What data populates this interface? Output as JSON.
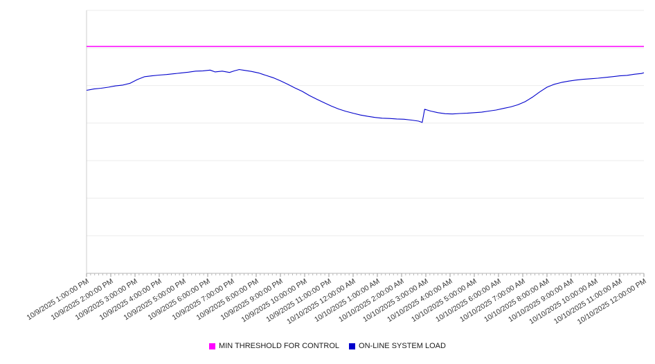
{
  "chart_data": {
    "type": "line",
    "title": "",
    "xlabel": "",
    "ylabel": "",
    "legend_position": "bottom",
    "x_labels": [
      "10/9/2025 1:00:00 PM",
      "10/9/2025 2:00:00 PM",
      "10/9/2025 3:00:00 PM",
      "10/9/2025 4:00:00 PM",
      "10/9/2025 5:00:00 PM",
      "10/9/2025 6:00:00 PM",
      "10/9/2025 7:00:00 PM",
      "10/9/2025 8:00:00 PM",
      "10/9/2025 9:00:00 PM",
      "10/9/2025 10:00:00 PM",
      "10/9/2025 11:00:00 PM",
      "10/10/2025 12:00:00 AM",
      "10/10/2025 1:00:00 AM",
      "10/10/2025 2:00:00 AM",
      "10/10/2025 3:00:00 AM",
      "10/10/2025 4:00:00 AM",
      "10/10/2025 5:00:00 AM",
      "10/10/2025 6:00:00 AM",
      "10/10/2025 7:00:00 AM",
      "10/10/2025 8:00:00 AM",
      "10/10/2025 9:00:00 AM",
      "10/10/2025 10:00:00 AM",
      "10/10/2025 11:00:00 AM",
      "10/10/2025 12:00:00 PM"
    ],
    "y_axis": {
      "min": 0,
      "max": 100,
      "gridlines": 8,
      "tick_labels_visible": false,
      "units": "unlabeled (relative scale estimated from pixels)"
    },
    "series": [
      {
        "name": "MIN THRESHOLD FOR CONTROL",
        "color": "#ff00ff",
        "style": "threshold",
        "value": 86.3
      },
      {
        "name": "ON-LINE SYSTEM LOAD",
        "color": "#0000cc",
        "style": "line",
        "points": [
          [
            0,
            69.6
          ],
          [
            0.3,
            70.1
          ],
          [
            0.6,
            70.4
          ],
          [
            0.9,
            70.8
          ],
          [
            1.2,
            71.3
          ],
          [
            1.5,
            71.6
          ],
          [
            1.8,
            72.3
          ],
          [
            2.1,
            73.7
          ],
          [
            2.4,
            74.8
          ],
          [
            2.7,
            75.1
          ],
          [
            3,
            75.4
          ],
          [
            3.3,
            75.6
          ],
          [
            3.6,
            75.9
          ],
          [
            3.9,
            76.2
          ],
          [
            4.2,
            76.5
          ],
          [
            4.5,
            76.9
          ],
          [
            4.8,
            77
          ],
          [
            5.1,
            77.3
          ],
          [
            5.3,
            76.6
          ],
          [
            5.6,
            76.9
          ],
          [
            5.9,
            76.4
          ],
          [
            6.1,
            77
          ],
          [
            6.3,
            77.5
          ],
          [
            6.5,
            77.2
          ],
          [
            6.8,
            76.8
          ],
          [
            7.1,
            76.2
          ],
          [
            7.4,
            75.3
          ],
          [
            7.7,
            74.4
          ],
          [
            8,
            73.2
          ],
          [
            8.3,
            71.9
          ],
          [
            8.6,
            70.5
          ],
          [
            8.9,
            69.2
          ],
          [
            9.2,
            67.6
          ],
          [
            9.5,
            66.2
          ],
          [
            9.8,
            64.9
          ],
          [
            10.1,
            63.6
          ],
          [
            10.4,
            62.5
          ],
          [
            10.7,
            61.6
          ],
          [
            11,
            60.9
          ],
          [
            11.3,
            60.2
          ],
          [
            11.6,
            59.7
          ],
          [
            11.9,
            59.3
          ],
          [
            12.2,
            59
          ],
          [
            12.5,
            58.9
          ],
          [
            12.8,
            58.7
          ],
          [
            13.1,
            58.6
          ],
          [
            13.4,
            58.3
          ],
          [
            13.7,
            57.9
          ],
          [
            13.85,
            57.4
          ],
          [
            13.95,
            62.4
          ],
          [
            14.2,
            61.7
          ],
          [
            14.5,
            61.1
          ],
          [
            14.8,
            60.7
          ],
          [
            15.1,
            60.6
          ],
          [
            15.4,
            60.8
          ],
          [
            15.7,
            60.9
          ],
          [
            16,
            61.1
          ],
          [
            16.3,
            61.3
          ],
          [
            16.6,
            61.7
          ],
          [
            16.9,
            62.1
          ],
          [
            17.2,
            62.7
          ],
          [
            17.5,
            63.3
          ],
          [
            17.8,
            64.1
          ],
          [
            18.1,
            65.3
          ],
          [
            18.4,
            67
          ],
          [
            18.7,
            69
          ],
          [
            19,
            70.8
          ],
          [
            19.3,
            71.9
          ],
          [
            19.6,
            72.6
          ],
          [
            19.9,
            73.1
          ],
          [
            20.2,
            73.5
          ],
          [
            20.5,
            73.8
          ],
          [
            20.8,
            74
          ],
          [
            21.1,
            74.2
          ],
          [
            21.4,
            74.5
          ],
          [
            21.7,
            74.8
          ],
          [
            22,
            75.1
          ],
          [
            22.3,
            75.3
          ],
          [
            22.6,
            75.7
          ],
          [
            22.9,
            76
          ],
          [
            23,
            76.3
          ]
        ]
      }
    ]
  },
  "legend": {
    "items": [
      {
        "label": "MIN THRESHOLD FOR CONTROL",
        "color": "#ff00ff"
      },
      {
        "label": "ON-LINE SYSTEM LOAD",
        "color": "#0000cc"
      }
    ]
  }
}
